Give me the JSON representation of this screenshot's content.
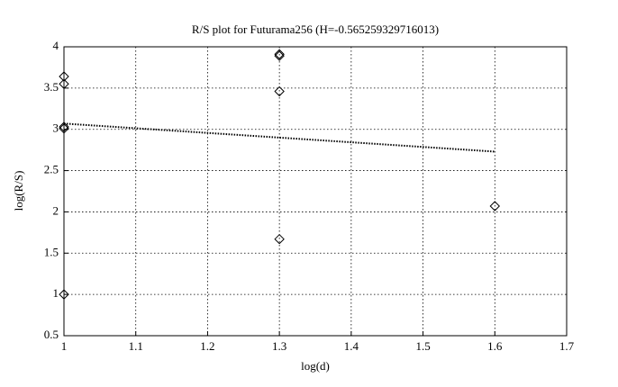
{
  "chart_data": {
    "type": "scatter",
    "title": "R/S plot for Futurama256 (H=-0.565259329716013)",
    "x_label": "log(d)",
    "y_label": "log(R/S)",
    "xlim": [
      1,
      1.7
    ],
    "ylim": [
      0.5,
      4
    ],
    "xticks": [
      1,
      1.1,
      1.2,
      1.3,
      1.4,
      1.5,
      1.6,
      1.7
    ],
    "yticks": [
      0.5,
      1,
      1.5,
      2,
      2.5,
      3,
      3.5,
      4
    ],
    "grid": true,
    "series": [
      {
        "type": "scatter",
        "marker": "diamond",
        "color": "#000000",
        "x": [
          1,
          1,
          1,
          1,
          1,
          1.3,
          1.3,
          1.3,
          1.3,
          1.6
        ],
        "values": [
          3.64,
          3.55,
          3.03,
          3.01,
          1.0,
          3.91,
          3.89,
          3.46,
          1.67,
          2.07
        ]
      },
      {
        "type": "line",
        "style": "dotted",
        "color": "#000000",
        "x": [
          1,
          1.6
        ],
        "values": [
          3.07,
          2.73
        ]
      }
    ]
  }
}
